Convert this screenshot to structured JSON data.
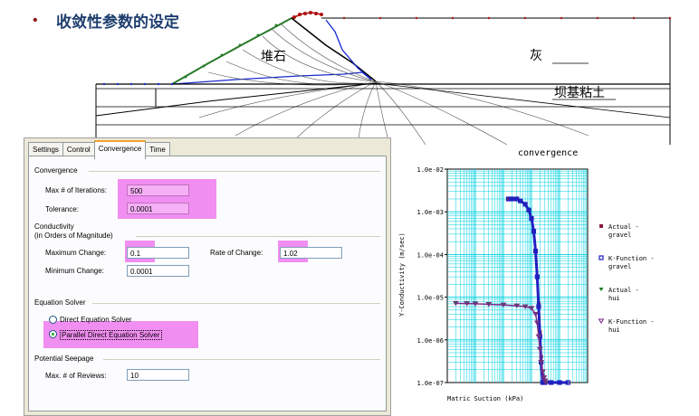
{
  "slide": {
    "bullet": "•",
    "title": "收敛性参数的设定"
  },
  "dam": {
    "label_rockfill": "堆石",
    "label_ash": "灰",
    "label_clay": "坝基粘土"
  },
  "dialog": {
    "tabs": [
      {
        "label": "Settings"
      },
      {
        "label": "Control"
      },
      {
        "label": "Convergence",
        "active": true
      },
      {
        "label": "Time"
      }
    ],
    "convergence": {
      "group_label": "Convergence",
      "max_iterations_label": "Max # of Iterations:",
      "max_iterations_value": "500",
      "tolerance_label": "Tolerance:",
      "tolerance_value": "0.0001"
    },
    "conductivity": {
      "group_label_line1": "Conductivity",
      "group_label_line2": "(in Orders of Magnitude)",
      "max_change_label": "Maximum Change:",
      "max_change_value": "0.1",
      "rate_label": "Rate of Change:",
      "rate_value": "1.02",
      "min_change_label": "Minimum Change:",
      "min_change_value": "0.0001"
    },
    "equation_solver": {
      "group_label": "Equation Solver",
      "option_direct": "Direct Equation Solver",
      "option_parallel": "Parallel Direct Equation Solver",
      "selected": "Parallel Direct Equation Solver"
    },
    "potential_seepage": {
      "group_label": "Potential Seepage",
      "max_reviews_label": "Max. # of Reviews:",
      "max_reviews_value": "10"
    },
    "highlight_color": "#f082f0"
  },
  "chart_data": {
    "type": "scatter",
    "title": "convergence",
    "xlabel": "Matric Suction (kPa)",
    "ylabel": "Y-Conductivity (m/sec)",
    "y_scale": "log",
    "y_ticks": [
      "1.0e-02",
      "1.0e-03",
      "1.0e-04",
      "1.0e-05",
      "1.0e-06",
      "1.0e-07"
    ],
    "ylim": [
      1e-07,
      0.01
    ],
    "x_scale": "log",
    "xlim": [
      0.01,
      1000
    ],
    "grid": true,
    "legend": "right",
    "series": [
      {
        "name": "Actual - gravel",
        "marker": "square-filled",
        "color": "#8b1a3a",
        "x": [
          1.5,
          2,
          2.5,
          3,
          4,
          6,
          8,
          10,
          12,
          14,
          16,
          18,
          20,
          22,
          25,
          28
        ],
        "y": [
          0.002,
          0.002,
          0.002,
          0.002,
          0.0018,
          0.0015,
          0.0011,
          0.0007,
          0.00035,
          0.00012,
          3e-05,
          7e-06,
          1.5e-06,
          4e-07,
          1.5e-07,
          1e-07
        ]
      },
      {
        "name": "K-Function - gravel",
        "marker": "square-open",
        "color": "#2020c0",
        "x": [
          1.5,
          2,
          3,
          4,
          6,
          8,
          10,
          12,
          14,
          16,
          18,
          20,
          22,
          25,
          30,
          50,
          100,
          200
        ],
        "y": [
          0.002,
          0.002,
          0.002,
          0.0018,
          0.0015,
          0.0011,
          0.0007,
          0.00035,
          0.00012,
          3e-05,
          6e-06,
          1.2e-06,
          3e-07,
          1e-07,
          1e-07,
          1e-07,
          1e-07,
          1e-07
        ]
      },
      {
        "name": "Actual - hui",
        "marker": "triangle-down-filled",
        "color": "#1a7a1a",
        "x": [
          0.02,
          0.05,
          0.1,
          0.3,
          1,
          3,
          6,
          10,
          14,
          16,
          18,
          20,
          22,
          25,
          28,
          30,
          33
        ],
        "y": [
          7.2e-06,
          7.1e-06,
          7e-06,
          6.8e-06,
          6.6e-06,
          6.3e-06,
          6e-06,
          5.5e-06,
          4e-06,
          2.5e-06,
          1.2e-06,
          6e-07,
          3e-07,
          1.8e-07,
          1.3e-07,
          1.1e-07,
          1e-07
        ]
      },
      {
        "name": "K-Function - hui",
        "marker": "triangle-down-open",
        "color": "#7a2a8a",
        "x": [
          0.02,
          0.05,
          0.1,
          0.3,
          1,
          3,
          6,
          10,
          14,
          16,
          18,
          20,
          22,
          25,
          28,
          30,
          33
        ],
        "y": [
          7.2e-06,
          7.1e-06,
          7e-06,
          6.8e-06,
          6.6e-06,
          6.3e-06,
          6e-06,
          5.5e-06,
          4e-06,
          2.5e-06,
          1.2e-06,
          6e-07,
          3e-07,
          1.8e-07,
          1.3e-07,
          1.1e-07,
          1e-07
        ]
      }
    ]
  }
}
